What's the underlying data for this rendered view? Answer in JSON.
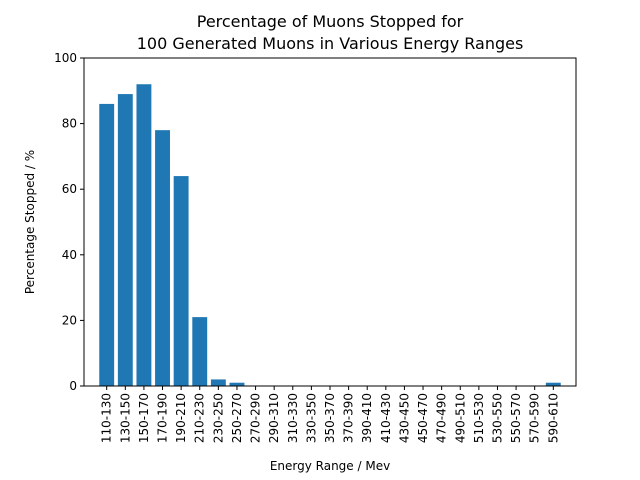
{
  "chart_data": {
    "type": "bar",
    "title_lines": [
      "Percentage of Muons Stopped for",
      "100 Generated Muons in Various Energy Ranges"
    ],
    "xlabel": "Energy Range / Mev",
    "ylabel": "Percentage Stopped / %",
    "ylim": [
      0,
      100
    ],
    "yticks": [
      0,
      20,
      40,
      60,
      80,
      100
    ],
    "grid": false,
    "bar_color": "#1f77b4",
    "categories": [
      "110-130",
      "130-150",
      "150-170",
      "170-190",
      "190-210",
      "210-230",
      "230-250",
      "250-270",
      "270-290",
      "290-310",
      "310-330",
      "330-350",
      "350-370",
      "370-390",
      "390-410",
      "410-430",
      "430-450",
      "450-470",
      "470-490",
      "490-510",
      "510-530",
      "530-550",
      "550-570",
      "570-590",
      "590-610"
    ],
    "values": [
      86,
      89,
      92,
      78,
      64,
      21,
      2,
      1,
      0,
      0,
      0,
      0,
      0,
      0,
      0,
      0,
      0,
      0,
      0,
      0,
      0,
      0,
      0,
      0,
      1
    ]
  }
}
